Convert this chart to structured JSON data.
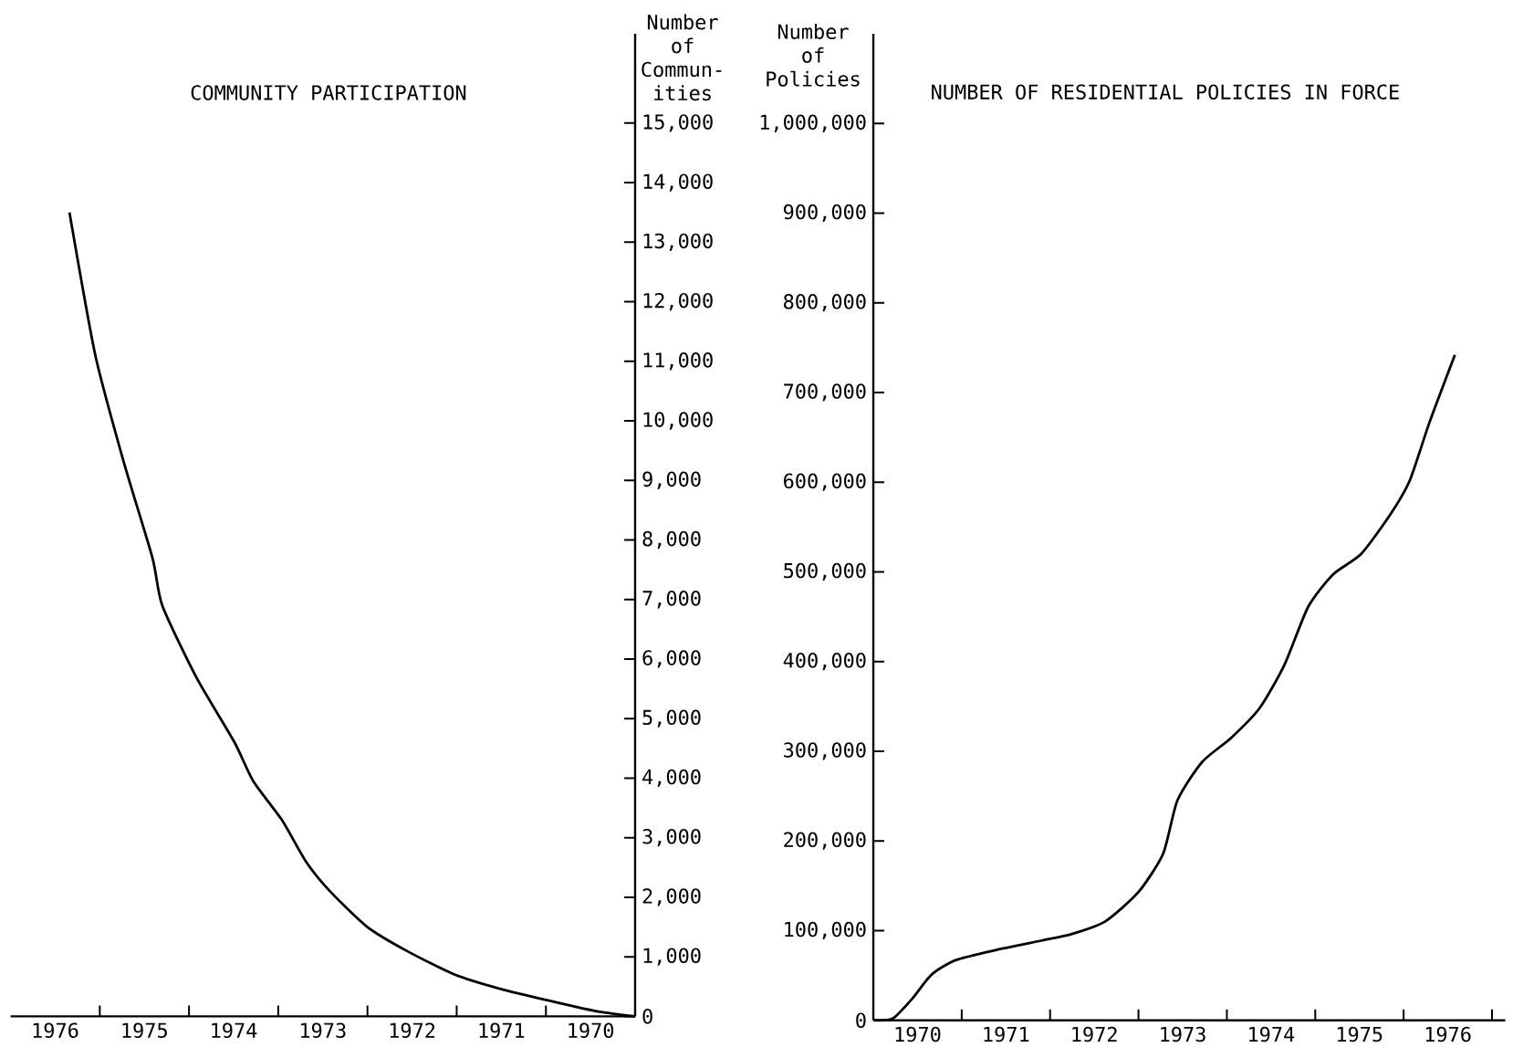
{
  "chart_data": [
    {
      "type": "line",
      "title": "COMMUNITY PARTICIPATION",
      "ylabel": "Number of Commun- ities",
      "marker": "none",
      "xlim": [
        1977,
        1970
      ],
      "ylim": [
        0,
        16500
      ],
      "xticks": [
        {
          "value": 1971,
          "label": null
        },
        {
          "value": 1972,
          "label": null
        },
        {
          "value": 1973,
          "label": null
        },
        {
          "value": 1974,
          "label": null
        },
        {
          "value": 1975,
          "label": null
        },
        {
          "value": 1976,
          "label": null
        },
        {
          "value": 1970.5,
          "label": "1970"
        },
        {
          "value": 1971.5,
          "label": "1971"
        },
        {
          "value": 1972.5,
          "label": "1972"
        },
        {
          "value": 1973.5,
          "label": "1973"
        },
        {
          "value": 1974.5,
          "label": "1974"
        },
        {
          "value": 1975.5,
          "label": "1975"
        },
        {
          "value": 1976.5,
          "label": "1976"
        }
      ],
      "yticks": [
        0,
        {
          "value": 1000,
          "label": "1,000"
        },
        {
          "value": 2000,
          "label": "2,000"
        },
        {
          "value": 3000,
          "label": "3,000"
        },
        {
          "value": 4000,
          "label": "4,000"
        },
        {
          "value": 5000,
          "label": "5,000"
        },
        {
          "value": 6000,
          "label": "6,000"
        },
        {
          "value": 7000,
          "label": "7,000"
        },
        {
          "value": 8000,
          "label": "8,000"
        },
        {
          "value": 9000,
          "label": "9,000"
        },
        {
          "value": 10000,
          "label": "10,000"
        },
        {
          "value": 11000,
          "label": "11,000"
        },
        {
          "value": 12000,
          "label": "12,000"
        },
        {
          "value": 13000,
          "label": "13,000"
        },
        {
          "value": 14000,
          "label": "14,000"
        },
        {
          "value": 15000,
          "label": "15,000"
        }
      ],
      "x": [
        1976.34,
        1976.05,
        1975.73,
        1975.41,
        1975.3,
        1974.92,
        1974.49,
        1974.28,
        1973.96,
        1973.69,
        1973.42,
        1973.0,
        1972.56,
        1972.02,
        1971.48,
        1970.95,
        1970.41,
        1970.0
      ],
      "values": [
        13500,
        11100,
        9300,
        7700,
        6900,
        5700,
        4600,
        3950,
        3300,
        2600,
        2100,
        1500,
        1100,
        700,
        450,
        260,
        80,
        0
      ],
      "color": "#000000"
    },
    {
      "type": "line",
      "title": "NUMBER OF RESIDENTIAL POLICIES IN FORCE",
      "ylabel": "Number of Policies",
      "marker": "none",
      "xlim": [
        1970,
        1977.15
      ],
      "ylim": [
        0,
        1100000
      ],
      "xticks": [
        {
          "value": 1971,
          "label": null
        },
        {
          "value": 1972,
          "label": null
        },
        {
          "value": 1973,
          "label": null
        },
        {
          "value": 1974,
          "label": null
        },
        {
          "value": 1975,
          "label": null
        },
        {
          "value": 1976,
          "label": null
        },
        {
          "value": 1977,
          "label": null
        },
        {
          "value": 1970.5,
          "label": "1970"
        },
        {
          "value": 1971.5,
          "label": "1971"
        },
        {
          "value": 1972.5,
          "label": "1972"
        },
        {
          "value": 1973.5,
          "label": "1973"
        },
        {
          "value": 1974.5,
          "label": "1974"
        },
        {
          "value": 1975.5,
          "label": "1975"
        },
        {
          "value": 1976.5,
          "label": "1976"
        }
      ],
      "yticks": [
        0,
        {
          "value": 100000,
          "label": "100,000"
        },
        {
          "value": 200000,
          "label": "200,000"
        },
        {
          "value": 300000,
          "label": "300,000"
        },
        {
          "value": 400000,
          "label": "400,000"
        },
        {
          "value": 500000,
          "label": "500,000"
        },
        {
          "value": 600000,
          "label": "600,000"
        },
        {
          "value": 700000,
          "label": "700,000"
        },
        {
          "value": 800000,
          "label": "800,000"
        },
        {
          "value": 900000,
          "label": "900,000"
        },
        {
          "value": 1000000,
          "label": "1,000,000"
        }
      ],
      "x": [
        1970.0,
        1970.22,
        1970.44,
        1970.66,
        1970.93,
        1971.37,
        1971.91,
        1972.24,
        1972.62,
        1973.0,
        1973.28,
        1973.44,
        1973.72,
        1974.05,
        1974.37,
        1974.65,
        1974.92,
        1975.2,
        1975.52,
        1975.85,
        1976.07,
        1976.29,
        1976.58
      ],
      "values": [
        0,
        2000,
        24000,
        51000,
        67000,
        78000,
        89000,
        96000,
        110000,
        143000,
        186000,
        245000,
        288000,
        315000,
        348000,
        396000,
        461000,
        497000,
        520000,
        564000,
        602000,
        666000,
        742000
      ],
      "color": "#000000"
    }
  ]
}
